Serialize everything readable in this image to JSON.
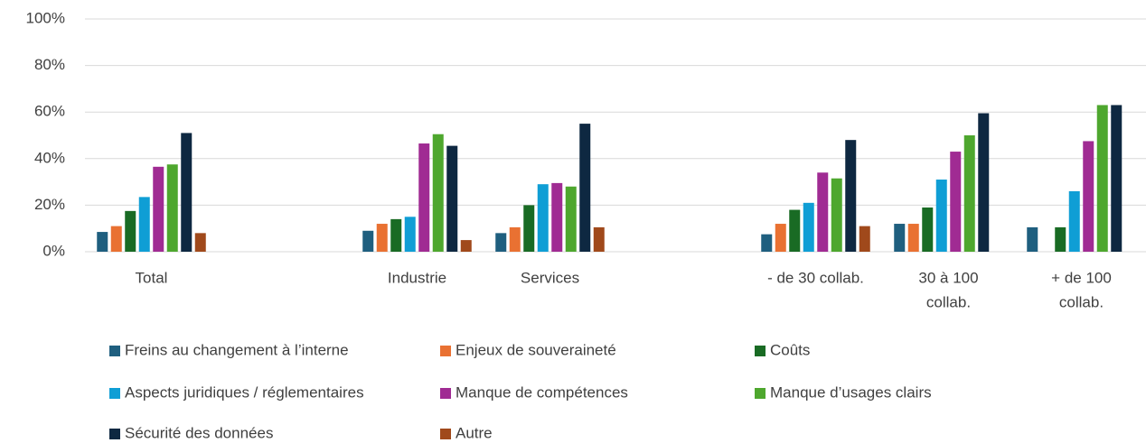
{
  "chart_data": {
    "type": "bar",
    "categories": [
      [
        "Total"
      ],
      null,
      [
        "Industrie"
      ],
      [
        "Services"
      ],
      null,
      [
        "- de 30 collab."
      ],
      [
        "30 à 100",
        "collab."
      ],
      [
        "+ de 100",
        "collab."
      ]
    ],
    "series": [
      {
        "name": "Freins au changement à l’interne",
        "color": "#1f5f7f",
        "values": [
          8.5,
          null,
          9,
          8,
          null,
          7.5,
          12,
          10.5
        ]
      },
      {
        "name": "Enjeux de souveraineté",
        "color": "#e97132",
        "values": [
          11,
          null,
          12,
          10.5,
          null,
          12,
          12,
          0
        ]
      },
      {
        "name": "Coûts",
        "color": "#196b24",
        "values": [
          17.5,
          null,
          14,
          20,
          null,
          18,
          19,
          10.5
        ]
      },
      {
        "name": "Aspects juridiques / réglementaires",
        "color": "#0f9ed5",
        "values": [
          23.5,
          null,
          15,
          29,
          null,
          21,
          31,
          26
        ]
      },
      {
        "name": "Manque de compétences",
        "color": "#a02b93",
        "values": [
          36.5,
          null,
          46.5,
          29.5,
          null,
          34,
          43,
          47.5
        ]
      },
      {
        "name": "Manque d’usages clairs",
        "color": "#4ea72e",
        "values": [
          37.5,
          null,
          50.5,
          28,
          null,
          31.5,
          50,
          63
        ]
      },
      {
        "name": "Sécurité des données",
        "color": "#0e2841",
        "values": [
          51,
          null,
          45.5,
          55,
          null,
          48,
          59.5,
          63
        ]
      },
      {
        "name": "Autre",
        "color": "#a0491b",
        "values": [
          8,
          null,
          5,
          10.5,
          null,
          11,
          0,
          0
        ]
      }
    ],
    "ylim": [
      0,
      100
    ],
    "yticks": [
      {
        "value": 0,
        "label": "0%"
      },
      {
        "value": 20,
        "label": "20%"
      },
      {
        "value": 40,
        "label": "40%"
      },
      {
        "value": 60,
        "label": "60%"
      },
      {
        "value": 80,
        "label": "80%"
      },
      {
        "value": 100,
        "label": "100%"
      }
    ],
    "grid": true,
    "legend": "bottom"
  }
}
